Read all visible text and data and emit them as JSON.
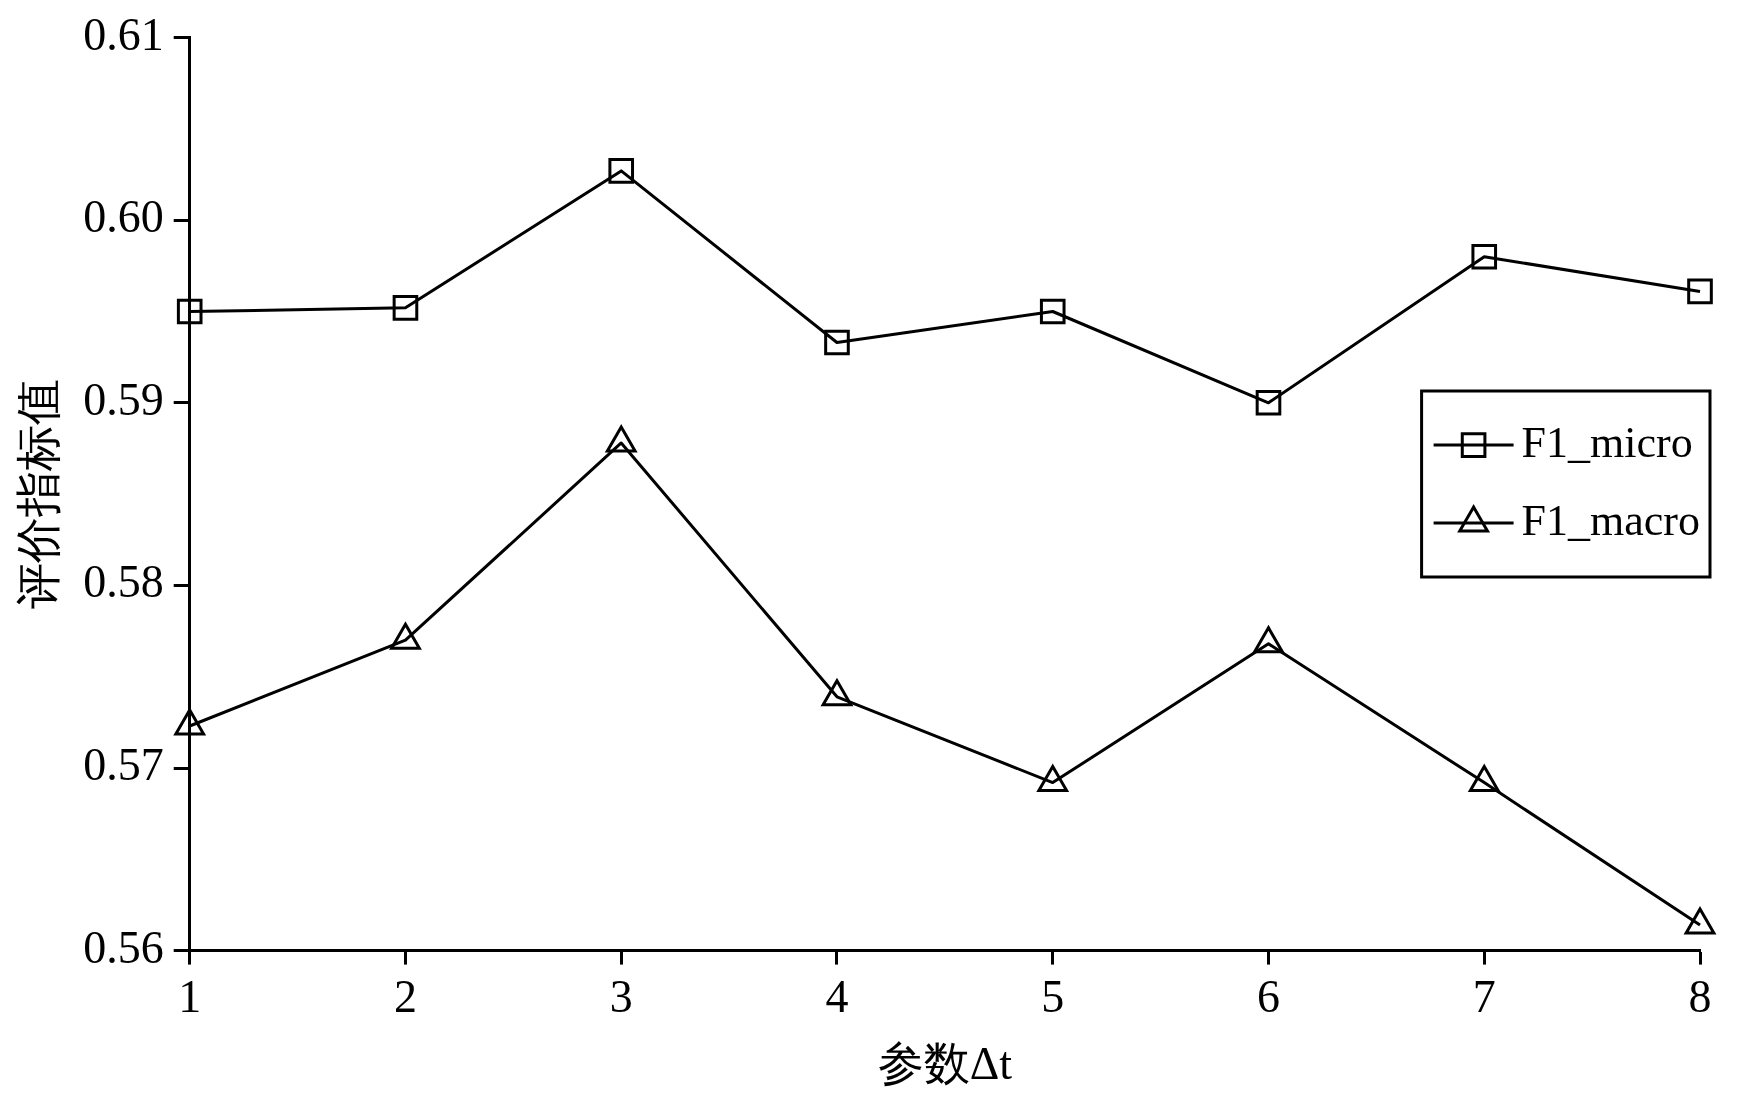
{
  "chart_data": {
    "type": "line",
    "xlabel": "参数Δt",
    "ylabel": "评价指标值",
    "x": [
      1,
      2,
      3,
      4,
      5,
      6,
      7,
      8
    ],
    "xlim": [
      1,
      8
    ],
    "xticks": [
      1,
      2,
      3,
      4,
      5,
      6,
      7,
      8
    ],
    "ylim": [
      0.56,
      0.61
    ],
    "yticks": [
      0.56,
      0.57,
      0.58,
      0.59,
      {
        "value": 0.6,
        "label": "0.60"
      },
      0.61
    ],
    "series": [
      {
        "name": "F1_micro",
        "color": "#000000",
        "marker": "square",
        "values": [
          0.595,
          0.5952,
          0.6027,
          0.5933,
          0.595,
          0.59,
          0.598,
          0.5961
        ]
      },
      {
        "name": "F1_macro",
        "color": "#000000",
        "marker": "triangle",
        "values": [
          0.5723,
          0.577,
          0.5878,
          0.5739,
          0.5692,
          0.5768,
          0.5692,
          0.5614
        ]
      }
    ],
    "grid": false,
    "legend": "right",
    "line_style": "solid"
  }
}
